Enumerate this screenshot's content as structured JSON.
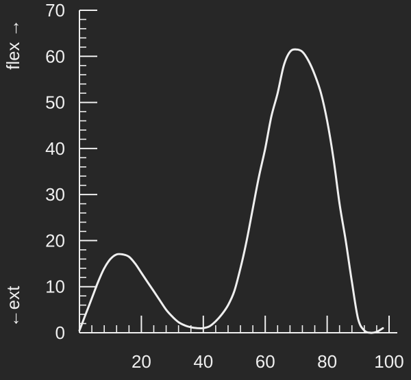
{
  "chart_data": {
    "type": "line",
    "title": "",
    "xlabel": "",
    "ylabel": {
      "upper": "flex →",
      "lower": "←ext"
    },
    "xlim": [
      0,
      100
    ],
    "ylim": [
      0,
      70
    ],
    "x_ticks": [
      20,
      40,
      60,
      80,
      100
    ],
    "y_ticks": [
      0,
      10,
      20,
      30,
      40,
      50,
      60,
      70
    ],
    "grid": false,
    "series": [
      {
        "values": [
          [
            0,
            0.5
          ],
          [
            2,
            4
          ],
          [
            4,
            7.5
          ],
          [
            6,
            11
          ],
          [
            8,
            14
          ],
          [
            10,
            16
          ],
          [
            12,
            17
          ],
          [
            14,
            17
          ],
          [
            16,
            16.5
          ],
          [
            18,
            15
          ],
          [
            20,
            13
          ],
          [
            22,
            11
          ],
          [
            24,
            9
          ],
          [
            26,
            7
          ],
          [
            28,
            5
          ],
          [
            30,
            3.5
          ],
          [
            32,
            2.3
          ],
          [
            34,
            1.6
          ],
          [
            36,
            1.2
          ],
          [
            38,
            1.0
          ],
          [
            40,
            1.0
          ],
          [
            42,
            1.4
          ],
          [
            44,
            2.5
          ],
          [
            46,
            4
          ],
          [
            48,
            6
          ],
          [
            50,
            9
          ],
          [
            52,
            14
          ],
          [
            54,
            20
          ],
          [
            56,
            27
          ],
          [
            58,
            34
          ],
          [
            60,
            40
          ],
          [
            62,
            47
          ],
          [
            64,
            52
          ],
          [
            66,
            58
          ],
          [
            68,
            61
          ],
          [
            70,
            61.5
          ],
          [
            72,
            61
          ],
          [
            74,
            59
          ],
          [
            76,
            56
          ],
          [
            78,
            52
          ],
          [
            80,
            46
          ],
          [
            82,
            38
          ],
          [
            84,
            28
          ],
          [
            86,
            20
          ],
          [
            88,
            11
          ],
          [
            90,
            3
          ],
          [
            92,
            0.5
          ],
          [
            94,
            0
          ],
          [
            96,
            0.2
          ],
          [
            98,
            1
          ]
        ]
      }
    ]
  },
  "colors": {
    "background": "#272727",
    "foreground": "#efefef"
  }
}
